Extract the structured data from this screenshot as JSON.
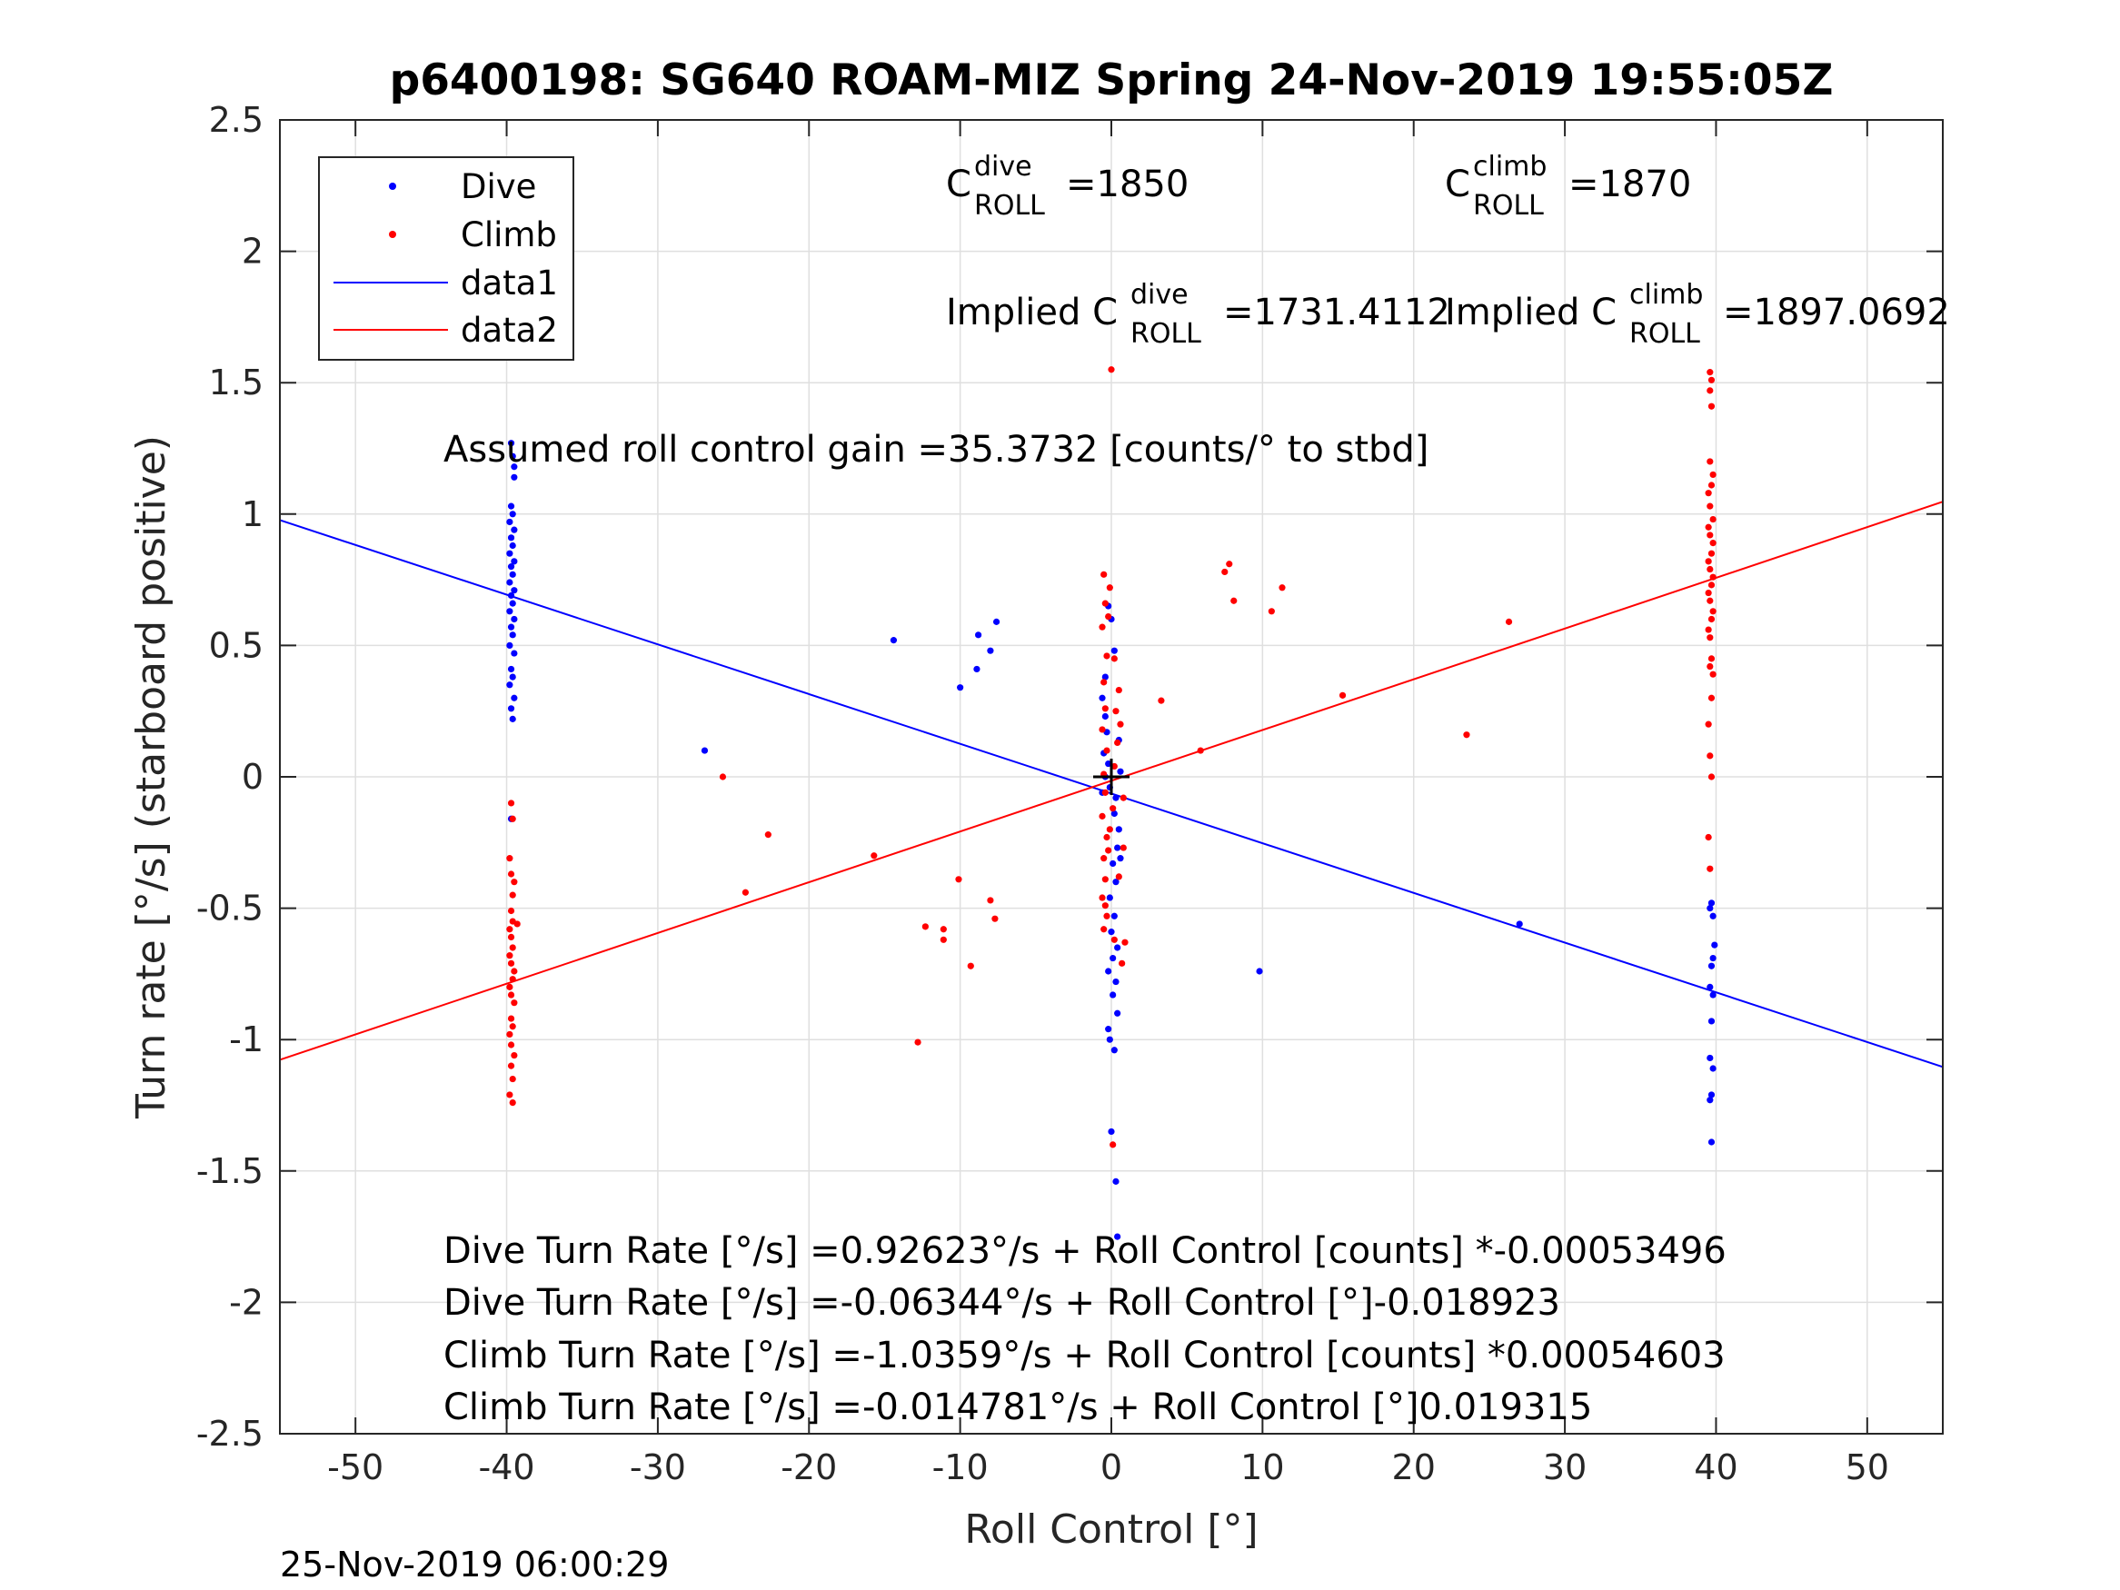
{
  "chart_data": {
    "type": "scatter",
    "title": "p6400198: SG640 ROAM-MIZ Spring 24-Nov-2019 19:55:05Z",
    "xlabel": "Roll Control [°]",
    "ylabel": "Turn rate [°/s] (starboard positive)",
    "xlim": [
      -55,
      55
    ],
    "ylim": [
      -2.5,
      2.5
    ],
    "xticks": [
      -50,
      -40,
      -30,
      -20,
      -10,
      0,
      10,
      20,
      30,
      40,
      50
    ],
    "xtick_labels": [
      "-50",
      "-40",
      "-30",
      "-20",
      "-10",
      "0",
      "10",
      "20",
      "30",
      "40",
      "50"
    ],
    "yticks": [
      2.5,
      2,
      1.5,
      1,
      0.5,
      0,
      -0.5,
      -1,
      -1.5,
      -2,
      -2.5
    ],
    "ytick_labels": [
      "2.5",
      "2",
      "1.5",
      "1",
      "0.5",
      "0",
      "-0.5",
      "-1",
      "-1.5",
      "-2",
      "-2.5"
    ],
    "grid": true,
    "legend_position": "top-left",
    "legend": [
      {
        "label": "Dive",
        "kind": "marker",
        "color": "#0000ff"
      },
      {
        "label": "Climb",
        "kind": "marker",
        "color": "#ff0000"
      },
      {
        "label": "data1",
        "kind": "line",
        "color": "#0000ff"
      },
      {
        "label": "data2",
        "kind": "line",
        "color": "#ff0000"
      }
    ],
    "series": [
      {
        "name": "Dive",
        "color": "#0000ff",
        "points": [
          [
            -39.7,
            1.27
          ],
          [
            -39.6,
            1.22
          ],
          [
            -39.5,
            1.18
          ],
          [
            -39.5,
            1.14
          ],
          [
            -39.7,
            1.03
          ],
          [
            -39.6,
            1.0
          ],
          [
            -39.8,
            0.97
          ],
          [
            -39.5,
            0.94
          ],
          [
            -39.7,
            0.91
          ],
          [
            -39.6,
            0.88
          ],
          [
            -39.8,
            0.85
          ],
          [
            -39.5,
            0.82
          ],
          [
            -39.7,
            0.8
          ],
          [
            -39.6,
            0.77
          ],
          [
            -39.8,
            0.74
          ],
          [
            -39.5,
            0.71
          ],
          [
            -39.7,
            0.69
          ],
          [
            -39.6,
            0.66
          ],
          [
            -39.8,
            0.63
          ],
          [
            -39.5,
            0.6
          ],
          [
            -39.7,
            0.57
          ],
          [
            -39.6,
            0.54
          ],
          [
            -39.8,
            0.5
          ],
          [
            -39.5,
            0.47
          ],
          [
            -39.7,
            0.41
          ],
          [
            -39.6,
            0.38
          ],
          [
            -39.8,
            0.35
          ],
          [
            -39.5,
            0.3
          ],
          [
            -39.7,
            0.26
          ],
          [
            -39.6,
            0.22
          ],
          [
            -39.7,
            -0.16
          ],
          [
            -26.9,
            0.1
          ],
          [
            -14.4,
            0.52
          ],
          [
            -10.0,
            0.34
          ],
          [
            -8.9,
            0.41
          ],
          [
            -8.8,
            0.54
          ],
          [
            -8.0,
            0.48
          ],
          [
            -7.6,
            0.59
          ],
          [
            -0.6,
            0.3
          ],
          [
            -0.4,
            0.23
          ],
          [
            -0.3,
            0.17
          ],
          [
            -0.5,
            0.09
          ],
          [
            -0.2,
            0.05
          ],
          [
            -0.4,
            0.0
          ],
          [
            -0.1,
            -0.04
          ],
          [
            0.3,
            -0.08
          ],
          [
            0.2,
            -0.14
          ],
          [
            0.5,
            -0.2
          ],
          [
            0.4,
            -0.27
          ],
          [
            0.1,
            -0.33
          ],
          [
            0.3,
            -0.4
          ],
          [
            -0.1,
            -0.46
          ],
          [
            0.2,
            -0.53
          ],
          [
            0.0,
            -0.59
          ],
          [
            0.4,
            -0.65
          ],
          [
            0.1,
            -0.69
          ],
          [
            -0.2,
            -0.74
          ],
          [
            0.3,
            -0.78
          ],
          [
            0.1,
            -0.83
          ],
          [
            0.4,
            -0.9
          ],
          [
            -0.2,
            -0.96
          ],
          [
            0.2,
            -1.04
          ],
          [
            -0.1,
            -1.0
          ],
          [
            0.0,
            -1.35
          ],
          [
            0.3,
            -1.54
          ],
          [
            0.4,
            -1.75
          ],
          [
            0.6,
            0.02
          ],
          [
            -0.6,
            -0.06
          ],
          [
            0.6,
            -0.31
          ],
          [
            0.5,
            0.14
          ],
          [
            -0.4,
            0.38
          ],
          [
            0.2,
            0.48
          ],
          [
            0.0,
            0.6
          ],
          [
            -0.2,
            0.65
          ],
          [
            9.8,
            -0.74
          ],
          [
            27.0,
            -0.56
          ],
          [
            39.7,
            -0.48
          ],
          [
            39.8,
            -0.53
          ],
          [
            39.6,
            -0.5
          ],
          [
            39.9,
            -0.64
          ],
          [
            39.8,
            -0.69
          ],
          [
            39.7,
            -0.72
          ],
          [
            39.6,
            -0.8
          ],
          [
            39.8,
            -0.83
          ],
          [
            39.7,
            -0.93
          ],
          [
            39.6,
            -1.07
          ],
          [
            39.8,
            -1.11
          ],
          [
            39.7,
            -1.21
          ],
          [
            39.6,
            -1.23
          ],
          [
            39.7,
            -1.39
          ]
        ]
      },
      {
        "name": "Climb",
        "color": "#ff0000",
        "points": [
          [
            -39.7,
            -0.1
          ],
          [
            -39.6,
            -0.16
          ],
          [
            -39.8,
            -0.31
          ],
          [
            -39.7,
            -0.37
          ],
          [
            -39.5,
            -0.4
          ],
          [
            -39.6,
            -0.45
          ],
          [
            -39.7,
            -0.51
          ],
          [
            -39.6,
            -0.55
          ],
          [
            -39.8,
            -0.58
          ],
          [
            -39.3,
            -0.56
          ],
          [
            -39.7,
            -0.61
          ],
          [
            -39.6,
            -0.65
          ],
          [
            -39.8,
            -0.68
          ],
          [
            -39.7,
            -0.71
          ],
          [
            -39.5,
            -0.74
          ],
          [
            -39.6,
            -0.77
          ],
          [
            -39.8,
            -0.8
          ],
          [
            -39.7,
            -0.83
          ],
          [
            -39.5,
            -0.86
          ],
          [
            -39.7,
            -0.92
          ],
          [
            -39.6,
            -0.95
          ],
          [
            -39.8,
            -0.98
          ],
          [
            -39.7,
            -1.02
          ],
          [
            -39.5,
            -1.06
          ],
          [
            -39.7,
            -1.1
          ],
          [
            -39.6,
            -1.15
          ],
          [
            -39.8,
            -1.21
          ],
          [
            -39.6,
            -1.24
          ],
          [
            -25.7,
            0.0
          ],
          [
            -22.7,
            -0.22
          ],
          [
            -24.2,
            -0.44
          ],
          [
            -15.7,
            -0.3
          ],
          [
            -12.3,
            -0.57
          ],
          [
            -11.1,
            -0.58
          ],
          [
            -11.1,
            -0.62
          ],
          [
            -12.8,
            -1.01
          ],
          [
            -10.1,
            -0.39
          ],
          [
            -9.3,
            -0.72
          ],
          [
            -8.0,
            -0.47
          ],
          [
            -7.7,
            -0.54
          ],
          [
            -0.5,
            0.77
          ],
          [
            -0.4,
            0.66
          ],
          [
            -0.6,
            0.57
          ],
          [
            -0.3,
            0.46
          ],
          [
            -0.5,
            0.36
          ],
          [
            -0.4,
            0.26
          ],
          [
            -0.6,
            0.18
          ],
          [
            -0.3,
            0.1
          ],
          [
            -0.5,
            0.01
          ],
          [
            -0.4,
            -0.06
          ],
          [
            -0.6,
            -0.15
          ],
          [
            -0.3,
            -0.23
          ],
          [
            -0.5,
            -0.31
          ],
          [
            -0.4,
            -0.39
          ],
          [
            -0.6,
            -0.46
          ],
          [
            -0.3,
            -0.53
          ],
          [
            -0.5,
            -0.58
          ],
          [
            -0.4,
            -0.49
          ],
          [
            -0.2,
            -0.28
          ],
          [
            -0.1,
            -0.2
          ],
          [
            0.1,
            -0.12
          ],
          [
            0.2,
            0.04
          ],
          [
            0.4,
            0.13
          ],
          [
            0.3,
            0.25
          ],
          [
            0.5,
            0.33
          ],
          [
            0.2,
            0.45
          ],
          [
            -0.2,
            0.61
          ],
          [
            -0.1,
            0.72
          ],
          [
            0.0,
            1.55
          ],
          [
            0.1,
            -1.4
          ],
          [
            0.2,
            -0.62
          ],
          [
            0.5,
            -0.38
          ],
          [
            0.8,
            -0.27
          ],
          [
            0.9,
            -0.63
          ],
          [
            0.7,
            -0.71
          ],
          [
            0.6,
            0.2
          ],
          [
            0.8,
            -0.08
          ],
          [
            3.3,
            0.29
          ],
          [
            5.9,
            0.1
          ],
          [
            7.5,
            0.78
          ],
          [
            7.8,
            0.81
          ],
          [
            8.1,
            0.67
          ],
          [
            10.6,
            0.63
          ],
          [
            11.3,
            0.72
          ],
          [
            15.3,
            0.31
          ],
          [
            23.5,
            0.16
          ],
          [
            26.3,
            0.59
          ],
          [
            39.6,
            1.54
          ],
          [
            39.7,
            1.51
          ],
          [
            39.6,
            1.47
          ],
          [
            39.7,
            1.41
          ],
          [
            39.6,
            1.2
          ],
          [
            39.8,
            1.15
          ],
          [
            39.7,
            1.11
          ],
          [
            39.5,
            1.08
          ],
          [
            39.6,
            1.03
          ],
          [
            39.8,
            0.98
          ],
          [
            39.5,
            0.95
          ],
          [
            39.6,
            0.92
          ],
          [
            39.8,
            0.89
          ],
          [
            39.7,
            0.85
          ],
          [
            39.5,
            0.82
          ],
          [
            39.6,
            0.79
          ],
          [
            39.8,
            0.76
          ],
          [
            39.7,
            0.73
          ],
          [
            39.5,
            0.7
          ],
          [
            39.6,
            0.67
          ],
          [
            39.8,
            0.63
          ],
          [
            39.7,
            0.6
          ],
          [
            39.5,
            0.56
          ],
          [
            39.6,
            0.53
          ],
          [
            39.7,
            0.45
          ],
          [
            39.6,
            0.42
          ],
          [
            39.8,
            0.39
          ],
          [
            39.7,
            0.3
          ],
          [
            39.5,
            0.2
          ],
          [
            39.6,
            0.08
          ],
          [
            39.7,
            0.0
          ],
          [
            39.5,
            -0.23
          ],
          [
            39.6,
            -0.35
          ]
        ]
      },
      {
        "name": "data1",
        "kind": "line",
        "color": "#0000ff",
        "x": [
          -55,
          55
        ],
        "y": [
          0.977,
          -1.104
        ]
      },
      {
        "name": "data2",
        "kind": "line",
        "color": "#ff0000",
        "x": [
          -55,
          55
        ],
        "y": [
          -1.077,
          1.047
        ]
      }
    ],
    "origin_marker": {
      "x": 0,
      "y": 0,
      "color": "#000000"
    }
  },
  "annotations": {
    "c_dive_main": "C",
    "c_dive_sup": "dive",
    "c_dive_sub": "ROLL",
    "c_dive_val": "=1850",
    "c_climb_main": "C",
    "c_climb_sup": "climb",
    "c_climb_sub": "ROLL",
    "c_climb_val": "=1870",
    "implied_dive_prefix": "Implied C",
    "implied_dive_sup": "dive",
    "implied_dive_sub": "ROLL",
    "implied_dive_val": "=1731.4112",
    "implied_climb_prefix": "Implied C",
    "implied_climb_sup": "climb",
    "implied_climb_sub": "ROLL",
    "implied_climb_val": "=1897.0692",
    "gain": "Assumed roll control gain =35.3732 [counts/° to stbd]",
    "eq1": "Dive Turn Rate [°/s] =0.92623°/s + Roll Control [counts] *-0.00053496",
    "eq2": "Dive Turn Rate [°/s] =-0.06344°/s + Roll Control [°]-0.018923",
    "eq3": "Climb Turn Rate [°/s] =-1.0359°/s + Roll Control [counts] *0.00054603",
    "eq4": "Climb Turn Rate [°/s] =-0.014781°/s + Roll Control [°]0.019315"
  },
  "footer": {
    "timestamp": "25-Nov-2019 06:00:29"
  }
}
